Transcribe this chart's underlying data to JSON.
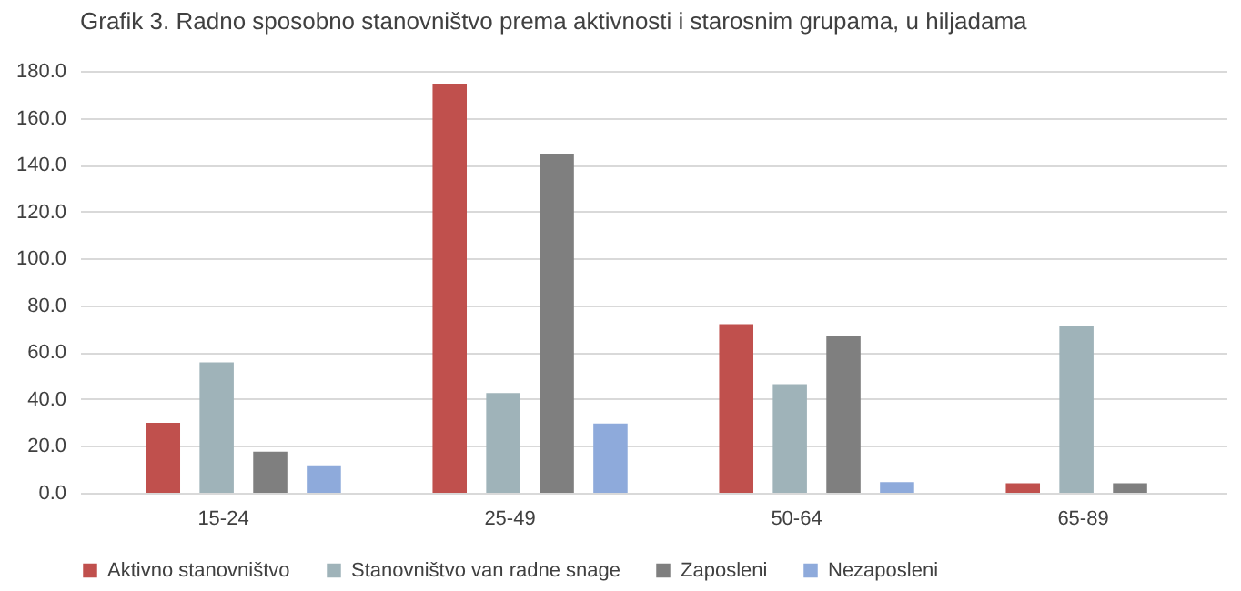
{
  "chart_data": {
    "type": "bar",
    "title": "Grafik 3. Radno sposobno stanovništvo prema aktivnosti i starosnim grupama, u hiljadama",
    "categories": [
      "15-24",
      "25-49",
      "50-64",
      "65-89"
    ],
    "series": [
      {
        "name": "Aktivno stanovništvo",
        "color": "#c0504d",
        "values": [
          29.9,
          174.6,
          72.0,
          4.1
        ]
      },
      {
        "name": "Stanovništvo van radne snage",
        "color": "#9fb3b9",
        "values": [
          55.7,
          42.6,
          46.4,
          71.1
        ]
      },
      {
        "name": "Zaposleni",
        "color": "#7f7f7f",
        "values": [
          17.6,
          144.7,
          67.1,
          4.1
        ]
      },
      {
        "name": "Nezaposleni",
        "color": "#8eaadb",
        "values": [
          11.7,
          29.6,
          4.6,
          null
        ]
      }
    ],
    "ylim": [
      0,
      180
    ],
    "yticks": [
      {
        "value": 0,
        "label": "0.0"
      },
      {
        "value": 20,
        "label": "20.0"
      },
      {
        "value": 40,
        "label": "40.0"
      },
      {
        "value": 60,
        "label": "60.0"
      },
      {
        "value": 80,
        "label": "80.0"
      },
      {
        "value": 100,
        "label": "100.0"
      },
      {
        "value": 120,
        "label": "120.0"
      },
      {
        "value": 140,
        "label": "140.0"
      },
      {
        "value": 160,
        "label": "160.0"
      },
      {
        "value": 180,
        "label": "180.0"
      }
    ],
    "grid": "y",
    "legend": "bottom"
  }
}
